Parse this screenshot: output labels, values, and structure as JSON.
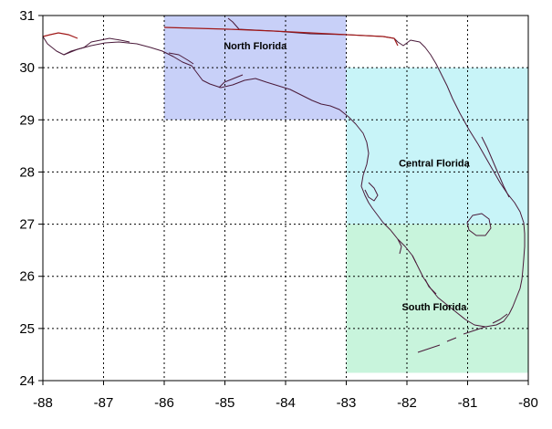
{
  "map": {
    "x_axis": {
      "min": -88,
      "max": -80,
      "step": 1,
      "tick_labels": [
        "-88",
        "-87",
        "-86",
        "-85",
        "-84",
        "-83",
        "-82",
        "-81",
        "-80"
      ]
    },
    "y_axis": {
      "min": 24,
      "max": 31,
      "step": 1,
      "tick_labels": [
        "24",
        "25",
        "26",
        "27",
        "28",
        "29",
        "30",
        "31"
      ]
    },
    "grid": true,
    "regions": [
      {
        "name": "North Florida",
        "lon_min": -86,
        "lon_max": -83,
        "lat_min": 29,
        "lat_max": 31,
        "color": "#c8d0f8",
        "label_lon": -84.5,
        "label_lat": 30.35
      },
      {
        "name": "Central Florida",
        "lon_min": -83,
        "lon_max": -80,
        "lat_min": 27,
        "lat_max": 30,
        "color": "#c8f4f8",
        "label_lon": -81.55,
        "label_lat": 28.1
      },
      {
        "name": "South Florida",
        "lon_min": -83,
        "lon_max": -80,
        "lat_min": 24.15,
        "lat_max": 27,
        "color": "#c8f4dc",
        "label_lon": -81.55,
        "label_lat": 25.35
      }
    ],
    "colors": {
      "coastline": "#4a1a3a",
      "state_border": "#a01818",
      "grid": "#000000"
    }
  }
}
